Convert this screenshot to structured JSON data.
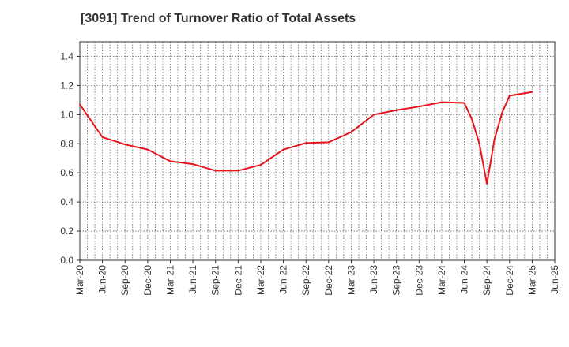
{
  "chart_data": {
    "type": "line",
    "title": "[3091]  Trend of Turnover Ratio of Total Assets",
    "xlabel": "",
    "ylabel": "",
    "ylim": [
      0,
      1.5
    ],
    "y_ticks": [
      "0.0",
      "0.2",
      "0.4",
      "0.6",
      "0.8",
      "1.0",
      "1.2",
      "1.4"
    ],
    "x_tick_labels": [
      "Mar-20",
      "Jun-20",
      "Sep-20",
      "Dec-20",
      "Mar-21",
      "Jun-21",
      "Sep-21",
      "Dec-21",
      "Mar-22",
      "Jun-22",
      "Sep-22",
      "Dec-22",
      "Mar-23",
      "Jun-23",
      "Sep-23",
      "Dec-23",
      "Mar-24",
      "Jun-24",
      "Sep-24",
      "Dec-24",
      "Mar-25",
      "Jun-25"
    ],
    "grid": true,
    "color": "#e8141c",
    "series": [
      {
        "points": [
          {
            "x": "Mar-20",
            "y": 1.07
          },
          {
            "x": "Jun-20",
            "y": 0.845
          },
          {
            "x": "Sep-20",
            "y": 0.795
          },
          {
            "x": "Dec-20",
            "y": 0.76
          },
          {
            "x": "Mar-21",
            "y": 0.68
          },
          {
            "x": "Jun-21",
            "y": 0.66
          },
          {
            "x": "Sep-21",
            "y": 0.615
          },
          {
            "x": "Dec-21",
            "y": 0.615
          },
          {
            "x": "Mar-22",
            "y": 0.655
          },
          {
            "x": "Jun-22",
            "y": 0.76
          },
          {
            "x": "Sep-22",
            "y": 0.805
          },
          {
            "x": "Dec-22",
            "y": 0.81
          },
          {
            "x": "Mar-23",
            "y": 0.88
          },
          {
            "x": "Jun-23",
            "y": 1.0
          },
          {
            "x": "Sep-23",
            "y": 1.03
          },
          {
            "x": "Dec-23",
            "y": 1.055
          },
          {
            "x": "Mar-24",
            "y": 1.085
          },
          {
            "x": "Jun-24",
            "y": 1.08
          },
          {
            "x": "Jul-24",
            "y": 0.97
          },
          {
            "x": "Aug-24",
            "y": 0.8
          },
          {
            "x": "Sep-24",
            "y": 0.525
          },
          {
            "x": "Oct-24",
            "y": 0.83
          },
          {
            "x": "Nov-24",
            "y": 1.01
          },
          {
            "x": "Dec-24",
            "y": 1.13
          },
          {
            "x": "Mar-25",
            "y": 1.155
          }
        ]
      }
    ]
  }
}
